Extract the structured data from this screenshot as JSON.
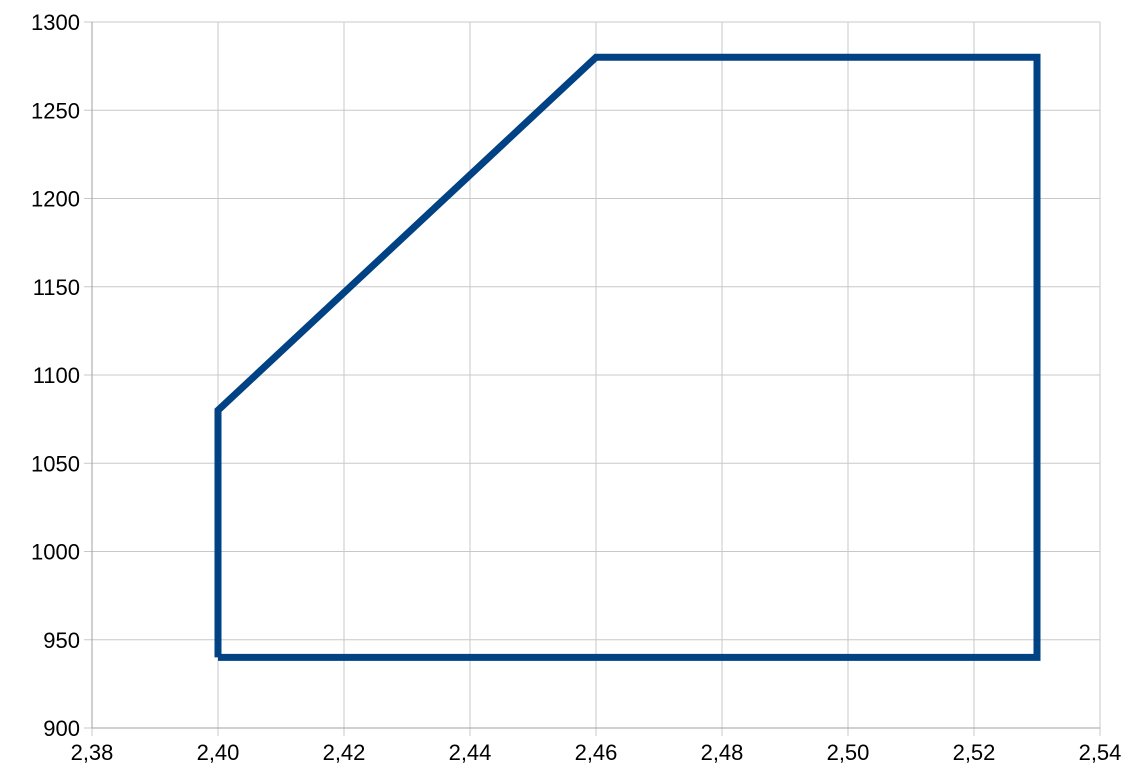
{
  "chart_data": {
    "type": "line",
    "title": "",
    "xlabel": "",
    "ylabel": "",
    "xlim": [
      2.38,
      2.54
    ],
    "ylim": [
      900,
      1300
    ],
    "x_ticks": [
      "2,38",
      "2,40",
      "2,42",
      "2,44",
      "2,46",
      "2,48",
      "2,50",
      "2,52",
      "2,54"
    ],
    "y_ticks": [
      "900",
      "950",
      "1000",
      "1050",
      "1100",
      "1150",
      "1200",
      "1250",
      "1300"
    ],
    "grid": true,
    "legend": "none",
    "series": [
      {
        "color": "#004283",
        "x": [
          2.4,
          2.4,
          2.46,
          2.53,
          2.53,
          2.4
        ],
        "y": [
          940,
          1080,
          1280,
          1280,
          940,
          940
        ]
      }
    ]
  }
}
